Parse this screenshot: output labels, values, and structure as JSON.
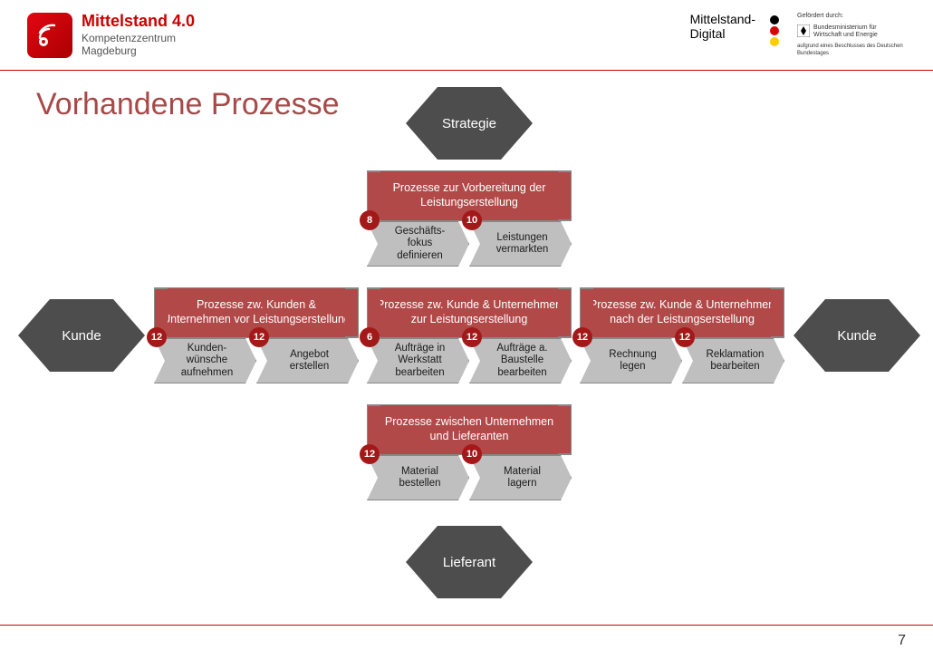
{
  "header": {
    "logo_title": "Mittelstand 4.0",
    "logo_sub1": "Kompetenzzentrum",
    "logo_sub2": "Magdeburg",
    "md_line1": "Mittelstand-",
    "md_line2": "Digital",
    "gov_top": "Gefördert durch:",
    "gov_mid": "Bundesministerium für Wirtschaft und Energie",
    "gov_bot": "aufgrund eines Beschlusses des Deutschen Bundestages"
  },
  "title": "Vorhandene Prozesse",
  "page": "7",
  "hexes": {
    "top": "Strategie",
    "left": "Kunde",
    "right": "Kunde",
    "bottom": "Lieferant"
  },
  "groups": {
    "top": {
      "header": "Prozesse zur Vorbereitung der Leistungserstellung",
      "steps": [
        {
          "badge": "8",
          "label": "Geschäfts-\nfokus\ndefinieren"
        },
        {
          "badge": "10",
          "label": "Leistungen\nvermarkten"
        }
      ]
    },
    "mid1": {
      "header": "Prozesse zw. Kunden & Unternehmen vor Leistungserstellung",
      "steps": [
        {
          "badge": "12",
          "label": "Kunden-\nwünsche\naufnehmen"
        },
        {
          "badge": "12",
          "label": "Angebot\nerstellen"
        }
      ]
    },
    "mid2": {
      "header": "Prozesse zw. Kunde & Unternehmen zur Leistungserstellung",
      "steps": [
        {
          "badge": "6",
          "label": "Aufträge in\nWerkstatt\nbearbeiten"
        },
        {
          "badge": "12",
          "label": "Aufträge a.\nBaustelle\nbearbeiten"
        }
      ]
    },
    "mid3": {
      "header": "Prozesse zw. Kunde & Unternehmen nach der Leistungserstellung",
      "steps": [
        {
          "badge": "12",
          "label": "Rechnung\nlegen"
        },
        {
          "badge": "12",
          "label": "Reklamation\nbearbeiten"
        }
      ]
    },
    "bot": {
      "header": "Prozesse zwischen Unternehmen und Lieferanten",
      "steps": [
        {
          "badge": "12",
          "label": "Material\nbestellen"
        },
        {
          "badge": "10",
          "label": "Material\nlagern"
        }
      ]
    }
  },
  "colors": {
    "accent": "#c00",
    "hex_fill": "#4d4d4d",
    "group_header": "#b14949",
    "step_fill": "#bfbfbf",
    "badge_fill": "#a31919"
  }
}
